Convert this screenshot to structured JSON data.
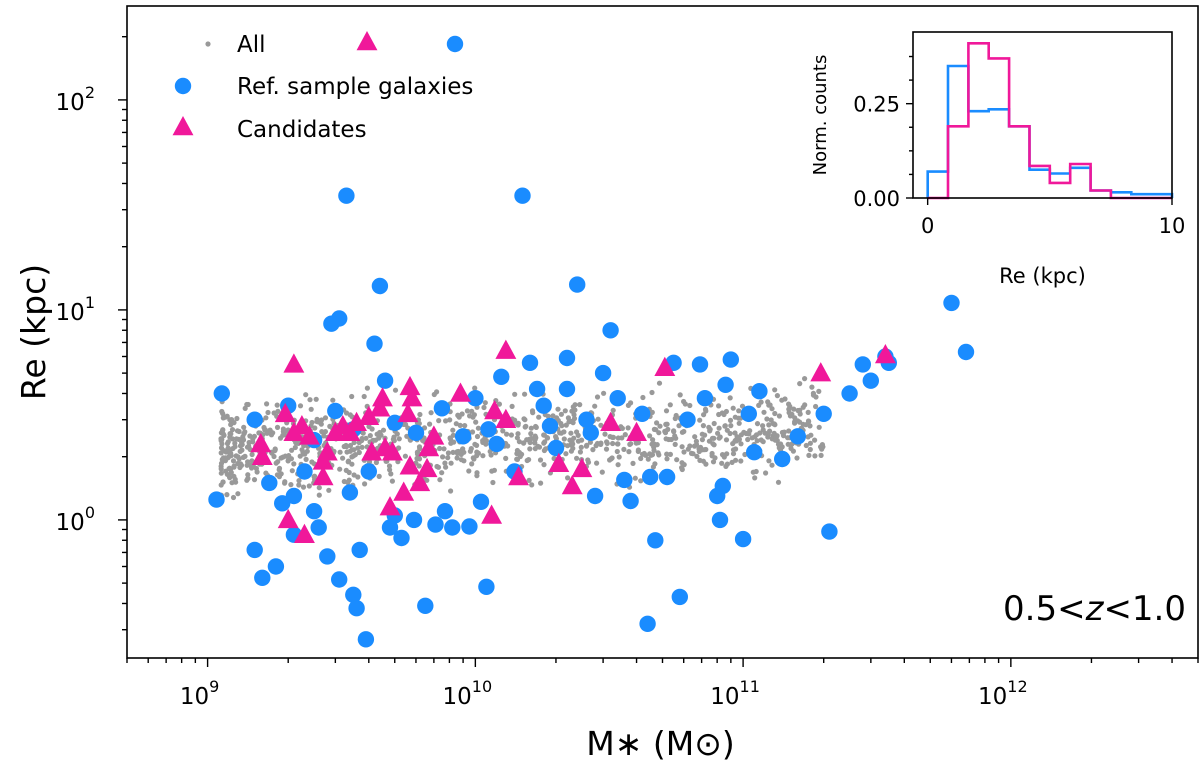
{
  "chart_data": [
    {
      "type": "scatter",
      "xlabel": "M∗ (M⊙)",
      "ylabel": "Re (kpc)",
      "x_scale": "log",
      "y_scale": "log",
      "xlim": [
        500000000.0,
        5000000000000.0
      ],
      "ylim": [
        0.22,
        280
      ],
      "x_tick_labels": [
        {
          "base": "10",
          "exp": "9",
          "value": 1000000000.0
        },
        {
          "base": "10",
          "exp": "10",
          "value": 10000000000.0
        },
        {
          "base": "10",
          "exp": "11",
          "value": 100000000000.0
        },
        {
          "base": "10",
          "exp": "12",
          "value": 1000000000000.0
        }
      ],
      "y_tick_labels": [
        {
          "base": "10",
          "exp": "0",
          "value": 1
        },
        {
          "base": "10",
          "exp": "1",
          "value": 10
        },
        {
          "base": "10",
          "exp": "2",
          "value": 100
        }
      ],
      "annotation": {
        "prefix": "0.5<",
        "var": "z",
        "suffix": "<1.0"
      },
      "legend": {
        "position": "top-left",
        "entries": [
          {
            "label": "All",
            "marker": "small-dot",
            "color": "#999999"
          },
          {
            "label": "Ref. sample galaxies",
            "marker": "circle",
            "color": "#1a8cff"
          },
          {
            "label": "Candidates",
            "marker": "triangle",
            "color": "#f0189a"
          }
        ]
      },
      "series": [
        {
          "name": "Candidates",
          "color": "#f0189a",
          "points": [
            [
              1580000000.0,
              2.3
            ],
            [
              1600000000.0,
              2.0
            ],
            [
              1950000000.0,
              3.2
            ],
            [
              2000000000.0,
              1.0
            ],
            [
              2100000000.0,
              5.5
            ],
            [
              2100000000.0,
              2.6
            ],
            [
              2250000000.0,
              2.8
            ],
            [
              2300000000.0,
              0.85
            ],
            [
              2400000000.0,
              2.5
            ],
            [
              2700000000.0,
              1.6
            ],
            [
              2700000000.0,
              1.9
            ],
            [
              2800000000.0,
              2.1
            ],
            [
              3000000000.0,
              2.6
            ],
            [
              3200000000.0,
              2.8
            ],
            [
              3400000000.0,
              2.6
            ],
            [
              3600000000.0,
              2.9
            ],
            [
              4000000000.0,
              3.1
            ],
            [
              4100000000.0,
              2.1
            ],
            [
              4400000000.0,
              3.4
            ],
            [
              4500000000.0,
              3.8
            ],
            [
              4600000000.0,
              2.2
            ],
            [
              4800000000.0,
              1.15
            ],
            [
              4900000000.0,
              2.1
            ],
            [
              5400000000.0,
              1.35
            ],
            [
              5600000000.0,
              3.2
            ],
            [
              5700000000.0,
              4.3
            ],
            [
              5700000000.0,
              1.8
            ],
            [
              5800000000.0,
              3.8
            ],
            [
              6200000000.0,
              1.5
            ],
            [
              6600000000.0,
              1.75
            ],
            [
              6700000000.0,
              2.2
            ],
            [
              7000000000.0,
              2.5
            ],
            [
              8800000000.0,
              4.0
            ],
            [
              11500000000.0,
              1.05
            ],
            [
              11800000000.0,
              3.3
            ],
            [
              13000000000.0,
              6.4
            ],
            [
              13000000000.0,
              3.0
            ],
            [
              14500000000.0,
              1.6
            ],
            [
              20500000000.0,
              1.85
            ],
            [
              23000000000.0,
              1.45
            ],
            [
              25000000000.0,
              1.75
            ],
            [
              32000000000.0,
              2.9
            ],
            [
              40000000000.0,
              2.6
            ],
            [
              51000000000.0,
              5.3
            ],
            [
              195000000000.0,
              5.0
            ],
            [
              340000000000.0,
              6.1
            ]
          ]
        },
        {
          "name": "Ref. sample galaxies",
          "color": "#1a8cff",
          "points": [
            [
              1080000000.0,
              1.25
            ],
            [
              1130000000.0,
              4.0
            ],
            [
              1500000000.0,
              0.72
            ],
            [
              1600000000.0,
              0.53
            ],
            [
              1700000000.0,
              1.5
            ],
            [
              1800000000.0,
              0.6
            ],
            [
              1900000000.0,
              1.2
            ],
            [
              2100000000.0,
              0.85
            ],
            [
              2100000000.0,
              1.3
            ],
            [
              2300000000.0,
              1.7
            ],
            [
              2500000000.0,
              1.1
            ],
            [
              2600000000.0,
              0.92
            ],
            [
              2800000000.0,
              0.67
            ],
            [
              2900000000.0,
              8.6
            ],
            [
              3100000000.0,
              9.1
            ],
            [
              3100000000.0,
              0.52
            ],
            [
              3300000000.0,
              35.0
            ],
            [
              3400000000.0,
              1.35
            ],
            [
              3500000000.0,
              0.44
            ],
            [
              3600000000.0,
              0.38
            ],
            [
              3700000000.0,
              0.72
            ],
            [
              3900000000.0,
              0.27
            ],
            [
              4200000000.0,
              6.9
            ],
            [
              4400000000.0,
              13.0
            ],
            [
              4600000000.0,
              4.6
            ],
            [
              4800000000.0,
              0.92
            ],
            [
              5000000000.0,
              1.05
            ],
            [
              5300000000.0,
              0.82
            ],
            [
              5900000000.0,
              1.0
            ],
            [
              6500000000.0,
              0.39
            ],
            [
              7100000000.0,
              0.95
            ],
            [
              7700000000.0,
              1.1
            ],
            [
              8200000000.0,
              0.92
            ],
            [
              9500000000.0,
              0.93
            ],
            [
              10500000000.0,
              1.22
            ],
            [
              11000000000.0,
              0.48
            ],
            [
              11200000000.0,
              2.7
            ],
            [
              12500000000.0,
              4.8
            ],
            [
              14000000000.0,
              1.7
            ],
            [
              15000000000.0,
              35.0
            ],
            [
              16000000000.0,
              5.6
            ],
            [
              18000000000.0,
              3.5
            ],
            [
              20000000000.0,
              2.2
            ],
            [
              22000000000.0,
              4.2
            ],
            [
              24000000000.0,
              13.2
            ],
            [
              26000000000.0,
              3.0
            ],
            [
              28000000000.0,
              1.3
            ],
            [
              30000000000.0,
              5.0
            ],
            [
              32000000000.0,
              8.0
            ],
            [
              36000000000.0,
              1.55
            ],
            [
              38000000000.0,
              1.23
            ],
            [
              44000000000.0,
              0.32
            ],
            [
              45000000000.0,
              1.6
            ],
            [
              47000000000.0,
              0.8
            ],
            [
              52000000000.0,
              1.6
            ],
            [
              58000000000.0,
              0.43
            ],
            [
              62000000000.0,
              3.0
            ],
            [
              69000000000.0,
              5.5
            ],
            [
              80000000000.0,
              1.3
            ],
            [
              82000000000.0,
              1.0
            ],
            [
              84000000000.0,
              1.45
            ],
            [
              90000000000.0,
              5.8
            ],
            [
              100000000000.0,
              0.81
            ],
            [
              105000000000.0,
              3.2
            ],
            [
              110000000000.0,
              2.1
            ],
            [
              115000000000.0,
              4.1
            ],
            [
              140000000000.0,
              1.95
            ],
            [
              160000000000.0,
              2.5
            ],
            [
              200000000000.0,
              3.2
            ],
            [
              210000000000.0,
              0.88
            ],
            [
              250000000000.0,
              4.0
            ],
            [
              280000000000.0,
              5.5
            ],
            [
              300000000000.0,
              4.6
            ],
            [
              350000000000.0,
              5.6
            ],
            [
              600000000000.0,
              10.8
            ],
            [
              680000000000.0,
              6.3
            ],
            [
              340000000000.0,
              6.0
            ],
            [
              1500000000.0,
              3.0
            ],
            [
              2000000000.0,
              3.5
            ],
            [
              2500000000.0,
              2.4
            ],
            [
              3000000000.0,
              3.3
            ],
            [
              3500000000.0,
              2.7
            ],
            [
              4000000000.0,
              1.7
            ],
            [
              5000000000.0,
              2.9
            ],
            [
              6000000000.0,
              2.6
            ],
            [
              7500000000.0,
              3.4
            ],
            [
              9000000000.0,
              2.5
            ],
            [
              10000000000.0,
              3.8
            ],
            [
              12000000000.0,
              2.3
            ],
            [
              17000000000.0,
              4.2
            ],
            [
              19000000000.0,
              2.8
            ],
            [
              22000000000.0,
              5.9
            ],
            [
              27000000000.0,
              2.6
            ],
            [
              34000000000.0,
              3.8
            ],
            [
              42000000000.0,
              3.2
            ],
            [
              55000000000.0,
              5.6
            ],
            [
              72000000000.0,
              3.8
            ],
            [
              86000000000.0,
              4.4
            ]
          ]
        }
      ]
    },
    {
      "type": "histogram",
      "xlabel": "Re (kpc)",
      "ylabel": "Norm. counts",
      "xlim": [
        -0.6,
        10.0
      ],
      "ylim": [
        0,
        0.44
      ],
      "x_tick_labels": [
        "0",
        "10"
      ],
      "y_tick_labels": [
        "0.00",
        "0.25"
      ],
      "bin_edges": [
        0,
        0.833,
        1.667,
        2.5,
        3.333,
        4.167,
        5.0,
        5.833,
        6.667,
        7.5,
        8.333,
        9.167,
        10.0
      ],
      "series": [
        {
          "name": "Ref. sample galaxies",
          "color": "#1a8cff",
          "values": [
            0.07,
            0.35,
            0.23,
            0.235,
            0.19,
            0.075,
            0.065,
            0.08,
            0.02,
            0.015,
            0.01,
            0.01
          ]
        },
        {
          "name": "Candidates",
          "color": "#f0189a",
          "values": [
            0.0,
            0.19,
            0.41,
            0.37,
            0.19,
            0.085,
            0.04,
            0.09,
            0.02,
            0.0,
            0.0,
            0.0
          ]
        }
      ]
    }
  ]
}
